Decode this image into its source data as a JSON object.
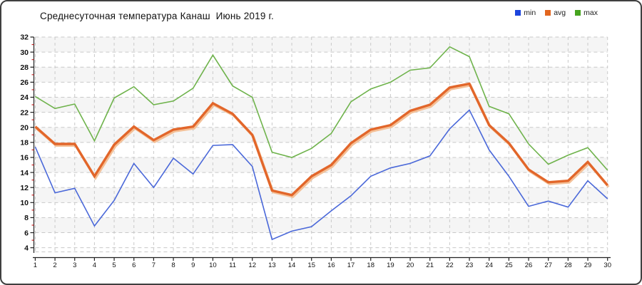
{
  "header": {
    "title": "Среднесуточная температура Канаш  Июнь 2019 г."
  },
  "legend": {
    "items": [
      {
        "id": "min",
        "label": "min",
        "color": "#1c45dd"
      },
      {
        "id": "avg",
        "label": "avg",
        "color": "#e2661f"
      },
      {
        "id": "max",
        "label": "max",
        "color": "#46a41f"
      }
    ]
  },
  "chart_data": {
    "type": "line",
    "title": "Среднесуточная температура Канаш  Июнь 2019 г.",
    "xlabel": "",
    "ylabel": "",
    "x": [
      1,
      2,
      3,
      4,
      5,
      6,
      7,
      8,
      9,
      10,
      11,
      12,
      13,
      14,
      15,
      16,
      17,
      18,
      19,
      20,
      21,
      22,
      23,
      24,
      25,
      26,
      27,
      28,
      29,
      30
    ],
    "series": [
      {
        "name": "min",
        "color": "#4a68d9",
        "width": 1.6,
        "values": [
          17.4,
          11.3,
          11.9,
          6.9,
          10.3,
          15.2,
          12.0,
          15.9,
          13.8,
          17.6,
          17.7,
          14.8,
          5.1,
          6.2,
          6.8,
          8.9,
          10.9,
          13.5,
          14.6,
          15.2,
          16.2,
          19.8,
          22.3,
          17.0,
          13.5,
          9.5,
          10.2,
          9.4,
          12.9,
          10.5
        ]
      },
      {
        "name": "avg",
        "color": "#e2662a",
        "width": 3.4,
        "shadow_color": "#f4c097",
        "values": [
          20.1,
          17.8,
          17.8,
          13.5,
          17.7,
          20.1,
          18.3,
          19.7,
          20.1,
          23.2,
          21.8,
          19.0,
          11.6,
          11.0,
          13.5,
          15.0,
          17.9,
          19.7,
          20.3,
          22.2,
          23.0,
          25.3,
          25.8,
          20.3,
          17.9,
          14.4,
          12.7,
          12.9,
          15.4,
          12.3
        ]
      },
      {
        "name": "max",
        "color": "#6fb34c",
        "width": 1.6,
        "values": [
          24.1,
          22.5,
          23.1,
          18.2,
          23.9,
          25.4,
          23.0,
          23.5,
          25.2,
          29.6,
          25.5,
          24.0,
          16.7,
          16.0,
          17.2,
          19.2,
          23.4,
          25.1,
          26.0,
          27.6,
          27.9,
          30.7,
          29.4,
          22.8,
          21.8,
          17.8,
          15.1,
          16.3,
          17.3,
          14.3
        ]
      }
    ],
    "ylim": [
      4,
      32
    ],
    "ytick_step": 2,
    "y_minor_tick_step": 1,
    "grid": true,
    "legend_position": "top-right",
    "style": {
      "band_color": "#f5f5f5",
      "band_alt_color": "#ffffff",
      "gridline_color": "#c9c9c9",
      "axis_color": "#222222",
      "minor_tick_color": "#cc2222",
      "label_color": "#111111"
    }
  }
}
